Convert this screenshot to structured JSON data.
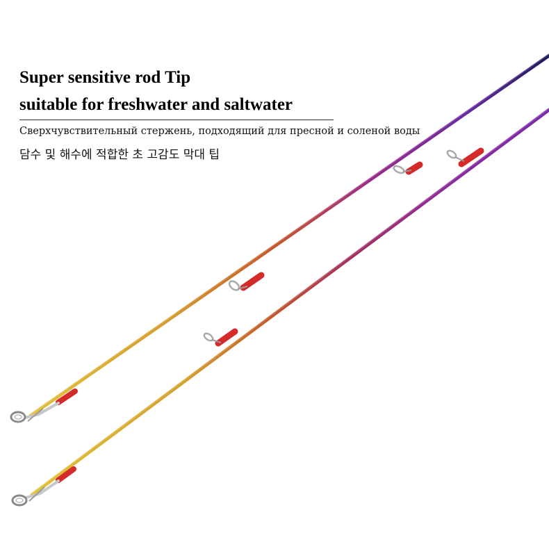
{
  "headline": {
    "line1": "Super sensitive rod Tip",
    "line2": "suitable for freshwater and saltwater"
  },
  "subtitle_ru": "Сверхчувствительный стержень, подходящий для пресной и соленой воды",
  "subtitle_ko": "담수 및 해수에 적합한 초 고감도 막대 팁",
  "colors": {
    "rod_tip": "#d9b32a",
    "rod_mid": "#c4552a",
    "rod_upper": "#8b2a9b",
    "rod_butt": "#1e1a5e",
    "wrap": "#d42a2a",
    "guide": "#b8b8b8"
  }
}
